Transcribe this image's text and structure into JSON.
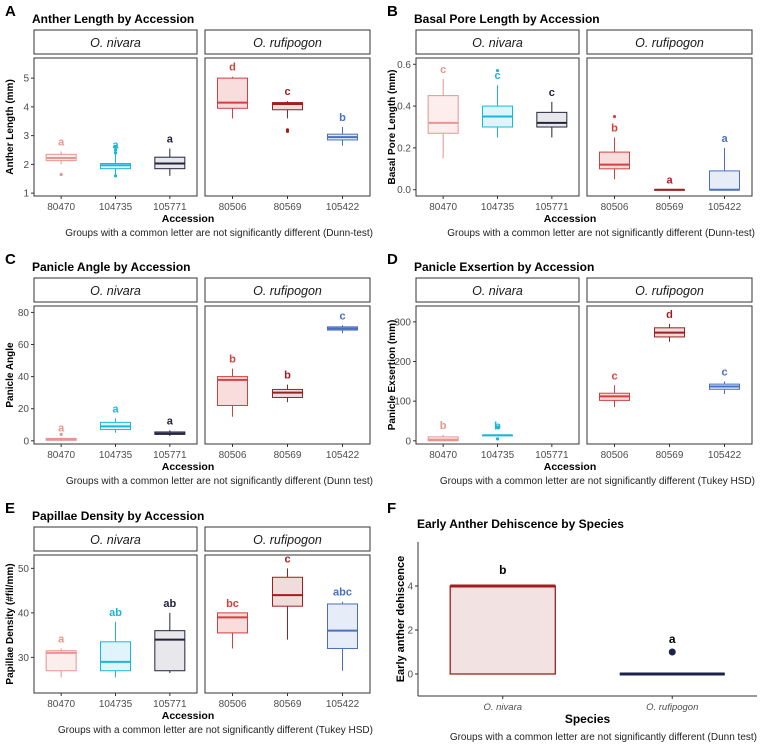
{
  "figure": {
    "strip_labels": [
      "O. nivara",
      "O. rufipogon"
    ],
    "x_axis_title": "Accession",
    "colors": {
      "80470": "#e8948f",
      "104735": "#1bb7d8",
      "105771": "#23233d",
      "80506": "#d2403f",
      "80569": "#9e1f1f",
      "105422": "#4a6fc1"
    },
    "fills": {
      "80470": "#fdeeee",
      "104735": "#dff5fb",
      "105771": "#e7e7ec",
      "80506": "#f9dcdc",
      "80569": "#f1dcdc",
      "105422": "#e6edf9"
    }
  },
  "chart_data": [
    {
      "panel": "A",
      "type": "box",
      "title": "Anther Length by Accession",
      "ylabel": "Anther Length (mm)",
      "ylim": [
        0.9,
        5.7
      ],
      "yticks": [
        1,
        2,
        3,
        4,
        5
      ],
      "groups": [
        {
          "accession": "80470",
          "species": "O. nivara",
          "min": 2.0,
          "q1": 2.13,
          "median": 2.22,
          "q3": 2.35,
          "max": 2.45,
          "outliers": [
            1.65
          ],
          "letter": "a"
        },
        {
          "accession": "104735",
          "species": "O. nivara",
          "min": 1.65,
          "q1": 1.85,
          "median": 1.97,
          "q3": 2.03,
          "max": 2.35,
          "outliers": [
            1.6,
            2.4,
            2.5,
            2.6
          ],
          "letter": "a"
        },
        {
          "accession": "105771",
          "species": "O. nivara",
          "min": 1.6,
          "q1": 1.85,
          "median": 2.03,
          "q3": 2.25,
          "max": 2.55,
          "outliers": [],
          "letter": "a"
        },
        {
          "accession": "80506",
          "species": "O. rufipogon",
          "min": 3.6,
          "q1": 3.95,
          "median": 4.15,
          "q3": 5.0,
          "max": 5.05,
          "outliers": [],
          "letter": "d"
        },
        {
          "accession": "80569",
          "species": "O. rufipogon",
          "min": 3.6,
          "q1": 3.9,
          "median": 4.1,
          "q3": 4.15,
          "max": 4.2,
          "outliers": [
            3.2,
            3.15
          ],
          "letter": "c"
        },
        {
          "accession": "105422",
          "species": "O. rufipogon",
          "min": 2.65,
          "q1": 2.85,
          "median": 2.95,
          "q3": 3.05,
          "max": 3.3,
          "outliers": [],
          "letter": "b"
        }
      ],
      "caption": "Groups with a common letter are not significantly different (Dunn-test)"
    },
    {
      "panel": "B",
      "type": "box",
      "title": "Basal Pore Length by Accession",
      "ylabel": "Basal Pore Length (mm)",
      "ylim": [
        -0.03,
        0.63
      ],
      "yticks": [
        0.0,
        0.2,
        0.4,
        0.6
      ],
      "ytick_labels": [
        "0.0",
        "0.2",
        "0.4",
        "0.6"
      ],
      "groups": [
        {
          "accession": "80470",
          "species": "O. nivara",
          "min": 0.15,
          "q1": 0.27,
          "median": 0.32,
          "q3": 0.45,
          "max": 0.53,
          "outliers": [],
          "letter": "c"
        },
        {
          "accession": "104735",
          "species": "O. nivara",
          "min": 0.25,
          "q1": 0.3,
          "median": 0.35,
          "q3": 0.4,
          "max": 0.5,
          "outliers": [
            0.57
          ],
          "letter": "c"
        },
        {
          "accession": "105771",
          "species": "O. nivara",
          "min": 0.25,
          "q1": 0.3,
          "median": 0.32,
          "q3": 0.37,
          "max": 0.42,
          "outliers": [],
          "letter": "c"
        },
        {
          "accession": "80506",
          "species": "O. rufipogon",
          "min": 0.05,
          "q1": 0.1,
          "median": 0.12,
          "q3": 0.18,
          "max": 0.25,
          "outliers": [
            0.35
          ],
          "letter": "b"
        },
        {
          "accession": "80569",
          "species": "O. rufipogon",
          "min": 0.0,
          "q1": 0.0,
          "median": 0.0,
          "q3": 0.0,
          "max": 0.0,
          "outliers": [],
          "letter": "a"
        },
        {
          "accession": "105422",
          "species": "O. rufipogon",
          "min": 0.0,
          "q1": 0.0,
          "median": 0.0,
          "q3": 0.09,
          "max": 0.2,
          "outliers": [],
          "letter": "a"
        }
      ],
      "caption": "Groups with a common letter are not significantly different (Dunn-test)"
    },
    {
      "panel": "C",
      "type": "box",
      "title": "Panicle Angle by Accession",
      "ylabel": "Panicle Angle",
      "ylim": [
        -2,
        84
      ],
      "yticks": [
        0,
        20,
        40,
        60,
        80
      ],
      "groups": [
        {
          "accession": "80470",
          "species": "O. nivara",
          "min": 0,
          "q1": 0.3,
          "median": 0.8,
          "q3": 1.5,
          "max": 2,
          "outliers": [
            4
          ],
          "letter": "a"
        },
        {
          "accession": "104735",
          "species": "O. nivara",
          "min": 5,
          "q1": 7,
          "median": 9,
          "q3": 11.5,
          "max": 14,
          "outliers": [],
          "letter": "a"
        },
        {
          "accession": "105771",
          "species": "O. nivara",
          "min": 3,
          "q1": 4,
          "median": 4.5,
          "q3": 5.5,
          "max": 6.5,
          "outliers": [],
          "letter": "a"
        },
        {
          "accession": "80506",
          "species": "O. rufipogon",
          "min": 15,
          "q1": 22,
          "median": 38,
          "q3": 40,
          "max": 45,
          "outliers": [],
          "letter": "b"
        },
        {
          "accession": "80569",
          "species": "O. rufipogon",
          "min": 24,
          "q1": 27,
          "median": 30,
          "q3": 32,
          "max": 35,
          "outliers": [],
          "letter": "b"
        },
        {
          "accession": "105422",
          "species": "O. rufipogon",
          "min": 67,
          "q1": 69,
          "median": 70,
          "q3": 71,
          "max": 72,
          "outliers": [],
          "letter": "c"
        }
      ],
      "caption": "Groups with a common letter are not significantly different (Dunn test)"
    },
    {
      "panel": "D",
      "type": "box",
      "title": "Panicle Exsertion by Accession",
      "ylabel": "Panicle Exsertion (mm)",
      "ylim": [
        -8,
        340
      ],
      "yticks": [
        0,
        100,
        200,
        300
      ],
      "groups": [
        {
          "accession": "80470",
          "species": "O. nivara",
          "min": 0,
          "q1": 0,
          "median": 3,
          "q3": 10,
          "max": 15,
          "outliers": [],
          "letter": "b"
        },
        {
          "accession": "104735",
          "species": "O. nivara",
          "min": 14,
          "q1": 14,
          "median": 14,
          "q3": 14,
          "max": 14,
          "outliers": [
            5,
            35
          ],
          "letter": "b"
        },
        {
          "accession": "80506",
          "species": "O. rufipogon",
          "min": 85,
          "q1": 102,
          "median": 112,
          "q3": 120,
          "max": 140,
          "outliers": [],
          "letter": "c"
        },
        {
          "accession": "80569",
          "species": "O. rufipogon",
          "min": 250,
          "q1": 262,
          "median": 273,
          "q3": 285,
          "max": 295,
          "outliers": [],
          "letter": "d"
        },
        {
          "accession": "105422",
          "species": "O. rufipogon",
          "min": 118,
          "q1": 130,
          "median": 137,
          "q3": 143,
          "max": 150,
          "outliers": [],
          "letter": "c"
        }
      ],
      "categories": [
        "80470",
        "104735",
        "105771",
        "80506",
        "80569",
        "105422"
      ],
      "caption": "Groups with a common letter are not significantly different (Tukey HSD)"
    },
    {
      "panel": "E",
      "type": "box",
      "title": "Papillae Density by Accession",
      "ylabel": "Papillae Density (#fil/mm)",
      "ylim": [
        22,
        53
      ],
      "yticks": [
        30,
        40,
        50
      ],
      "groups": [
        {
          "accession": "80470",
          "species": "O. nivara",
          "min": 25.5,
          "q1": 27,
          "median": 31,
          "q3": 31.5,
          "max": 32,
          "outliers": [],
          "letter": "a"
        },
        {
          "accession": "104735",
          "species": "O. nivara",
          "min": 25.5,
          "q1": 27,
          "median": 29,
          "q3": 33.5,
          "max": 38,
          "outliers": [],
          "letter": "ab"
        },
        {
          "accession": "105771",
          "species": "O. nivara",
          "min": 26.5,
          "q1": 27,
          "median": 34,
          "q3": 36,
          "max": 40,
          "outliers": [],
          "letter": "ab"
        },
        {
          "accession": "80506",
          "species": "O. rufipogon",
          "min": 32,
          "q1": 35.5,
          "median": 39,
          "q3": 40,
          "max": 40,
          "outliers": [],
          "letter": "bc"
        },
        {
          "accession": "80569",
          "species": "O. rufipogon",
          "min": 34,
          "q1": 41.5,
          "median": 44,
          "q3": 48,
          "max": 50,
          "outliers": [],
          "letter": "c"
        },
        {
          "accession": "105422",
          "species": "O. rufipogon",
          "min": 27,
          "q1": 32,
          "median": 36,
          "q3": 42,
          "max": 42.5,
          "outliers": [],
          "letter": "abc"
        }
      ],
      "caption": "Groups with a common letter are not significantly different (Tukey HSD)"
    },
    {
      "panel": "F",
      "type": "box",
      "title": "Early Anther Dehiscence by Species",
      "ylabel": "Early anther dehiscence",
      "xlabel": "Species",
      "ylim": [
        -1,
        6
      ],
      "yticks": [
        0,
        2,
        4
      ],
      "groups": [
        {
          "species": "O. nivara",
          "min": 0,
          "q1": 0,
          "median": 4,
          "q3": 4,
          "max": 4,
          "outliers": [],
          "letter": "b",
          "color": "#9e1f1f",
          "fill": "#f3e2e2"
        },
        {
          "species": "O. rufipogon",
          "min": 0,
          "q1": 0,
          "median": 0,
          "q3": 0,
          "max": 0,
          "outliers": [
            1
          ],
          "letter": "a",
          "color": "#1e2148",
          "fill": "#1e2148"
        }
      ],
      "caption": "Groups with a common letter are not significantly different (Dunn test)"
    }
  ]
}
